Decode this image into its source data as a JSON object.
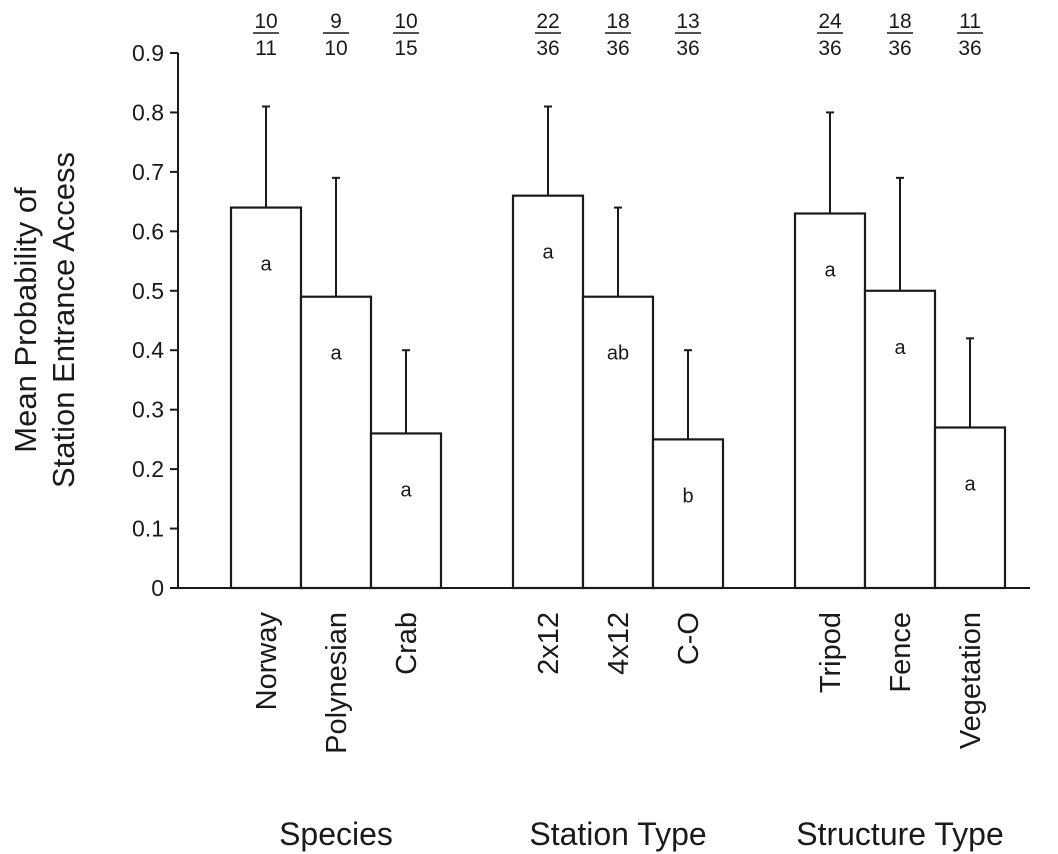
{
  "chart_data": {
    "type": "bar",
    "ylabel_lines": [
      "Mean Probability of",
      "Station Entrance Access"
    ],
    "ylim": [
      0,
      0.9
    ],
    "yticks": [
      "0",
      "0.1",
      "0.2",
      "0.3",
      "0.4",
      "0.5",
      "0.6",
      "0.7",
      "0.8",
      "0.9"
    ],
    "grid": false,
    "legend": "none",
    "colors": {
      "bar_fill": "#ffffff",
      "stroke": "#1a1a1a"
    },
    "groups": [
      {
        "name": "Species",
        "bars": [
          {
            "category": "Norway",
            "value": 0.64,
            "error_upper": 0.81,
            "letter": "a",
            "frac_num": "10",
            "frac_den": "11"
          },
          {
            "category": "Polynesian",
            "value": 0.49,
            "error_upper": 0.69,
            "letter": "a",
            "frac_num": "9",
            "frac_den": "10"
          },
          {
            "category": "Crab",
            "value": 0.26,
            "error_upper": 0.4,
            "letter": "a",
            "frac_num": "10",
            "frac_den": "15"
          }
        ]
      },
      {
        "name": "Station Type",
        "bars": [
          {
            "category": "2x12",
            "value": 0.66,
            "error_upper": 0.81,
            "letter": "a",
            "frac_num": "22",
            "frac_den": "36"
          },
          {
            "category": "4x12",
            "value": 0.49,
            "error_upper": 0.64,
            "letter": "ab",
            "frac_num": "18",
            "frac_den": "36"
          },
          {
            "category": "C-O",
            "value": 0.25,
            "error_upper": 0.4,
            "letter": "b",
            "frac_num": "13",
            "frac_den": "36"
          }
        ]
      },
      {
        "name": "Structure Type",
        "bars": [
          {
            "category": "Tripod",
            "value": 0.63,
            "error_upper": 0.8,
            "letter": "a",
            "frac_num": "24",
            "frac_den": "36"
          },
          {
            "category": "Fence",
            "value": 0.5,
            "error_upper": 0.69,
            "letter": "a",
            "frac_num": "18",
            "frac_den": "36"
          },
          {
            "category": "Vegetation",
            "value": 0.27,
            "error_upper": 0.42,
            "letter": "a",
            "frac_num": "11",
            "frac_den": "36"
          }
        ]
      }
    ]
  }
}
